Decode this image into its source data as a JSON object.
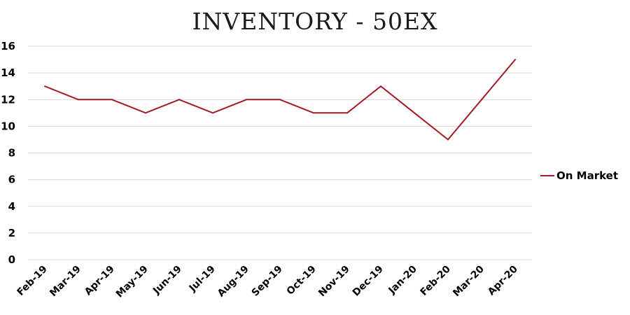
{
  "chart_data": {
    "type": "line",
    "title": "INVENTORY - 50EX",
    "xlabel": "",
    "ylabel": "",
    "categories": [
      "Feb-19",
      "Mar-19",
      "Apr-19",
      "May-19",
      "Jun-19",
      "Jul-19",
      "Aug-19",
      "Sep-19",
      "Oct-19",
      "Nov-19",
      "Dec-19",
      "Jan-20",
      "Feb-20",
      "Mar-20",
      "Apr-20"
    ],
    "series": [
      {
        "name": "On Market",
        "color": "#a31b24",
        "values": [
          13,
          12,
          12,
          11,
          12,
          11,
          12,
          12,
          11,
          11,
          13,
          11,
          9,
          12,
          15
        ]
      }
    ],
    "ylim": [
      0,
      16
    ],
    "yticks": [
      0,
      2,
      4,
      6,
      8,
      10,
      12,
      14,
      16
    ],
    "grid": true,
    "legend_position": "right"
  }
}
